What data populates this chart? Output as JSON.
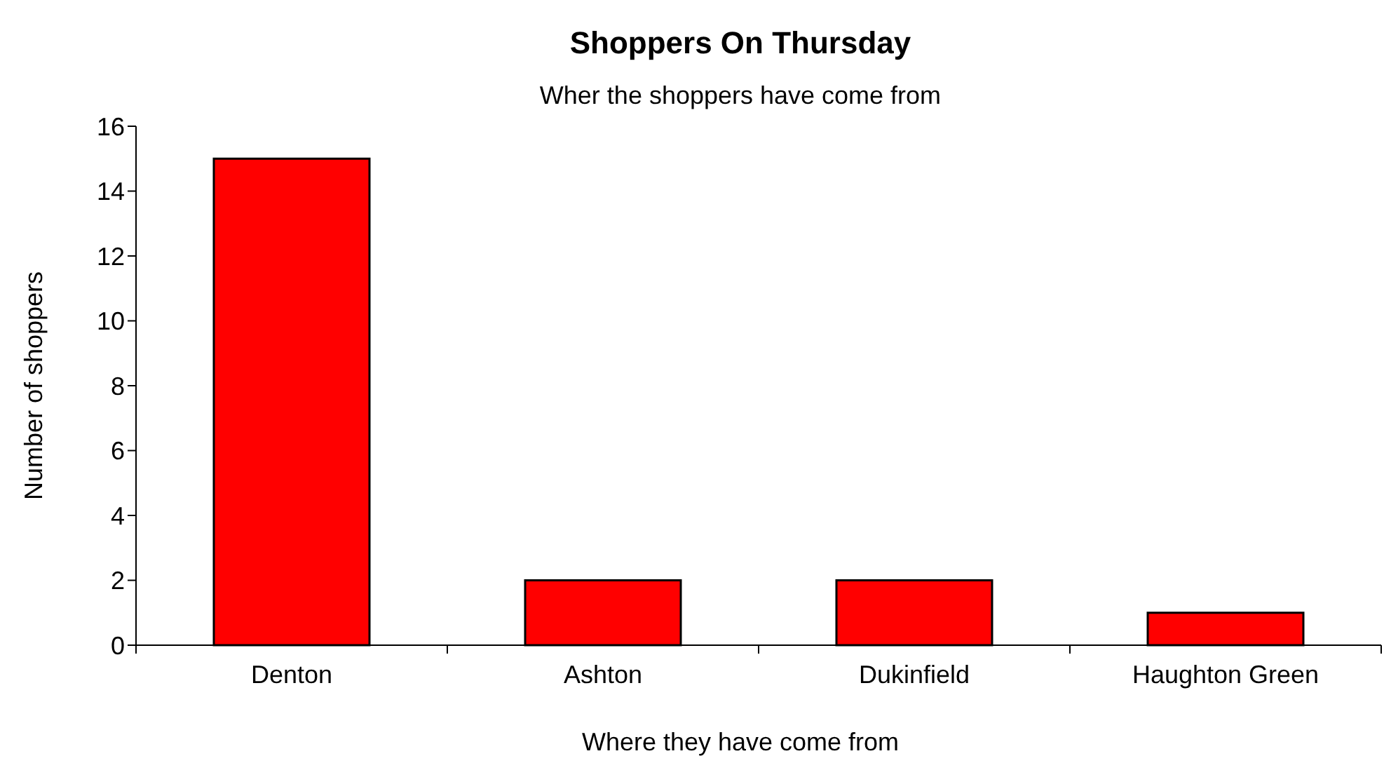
{
  "chart_data": {
    "type": "bar",
    "title": "Shoppers On Thursday",
    "subtitle": "Wher the shoppers have come from",
    "xlabel": "Where they have come from",
    "ylabel": "Number of shoppers",
    "categories": [
      "Denton",
      "Ashton",
      "Dukinfield",
      "Haughton Green"
    ],
    "values": [
      15,
      2,
      2,
      1
    ],
    "color": "#ff0000",
    "ylim": [
      0,
      16
    ],
    "yticks": [
      0,
      2,
      4,
      6,
      8,
      10,
      12,
      14,
      16
    ],
    "grid": false
  }
}
